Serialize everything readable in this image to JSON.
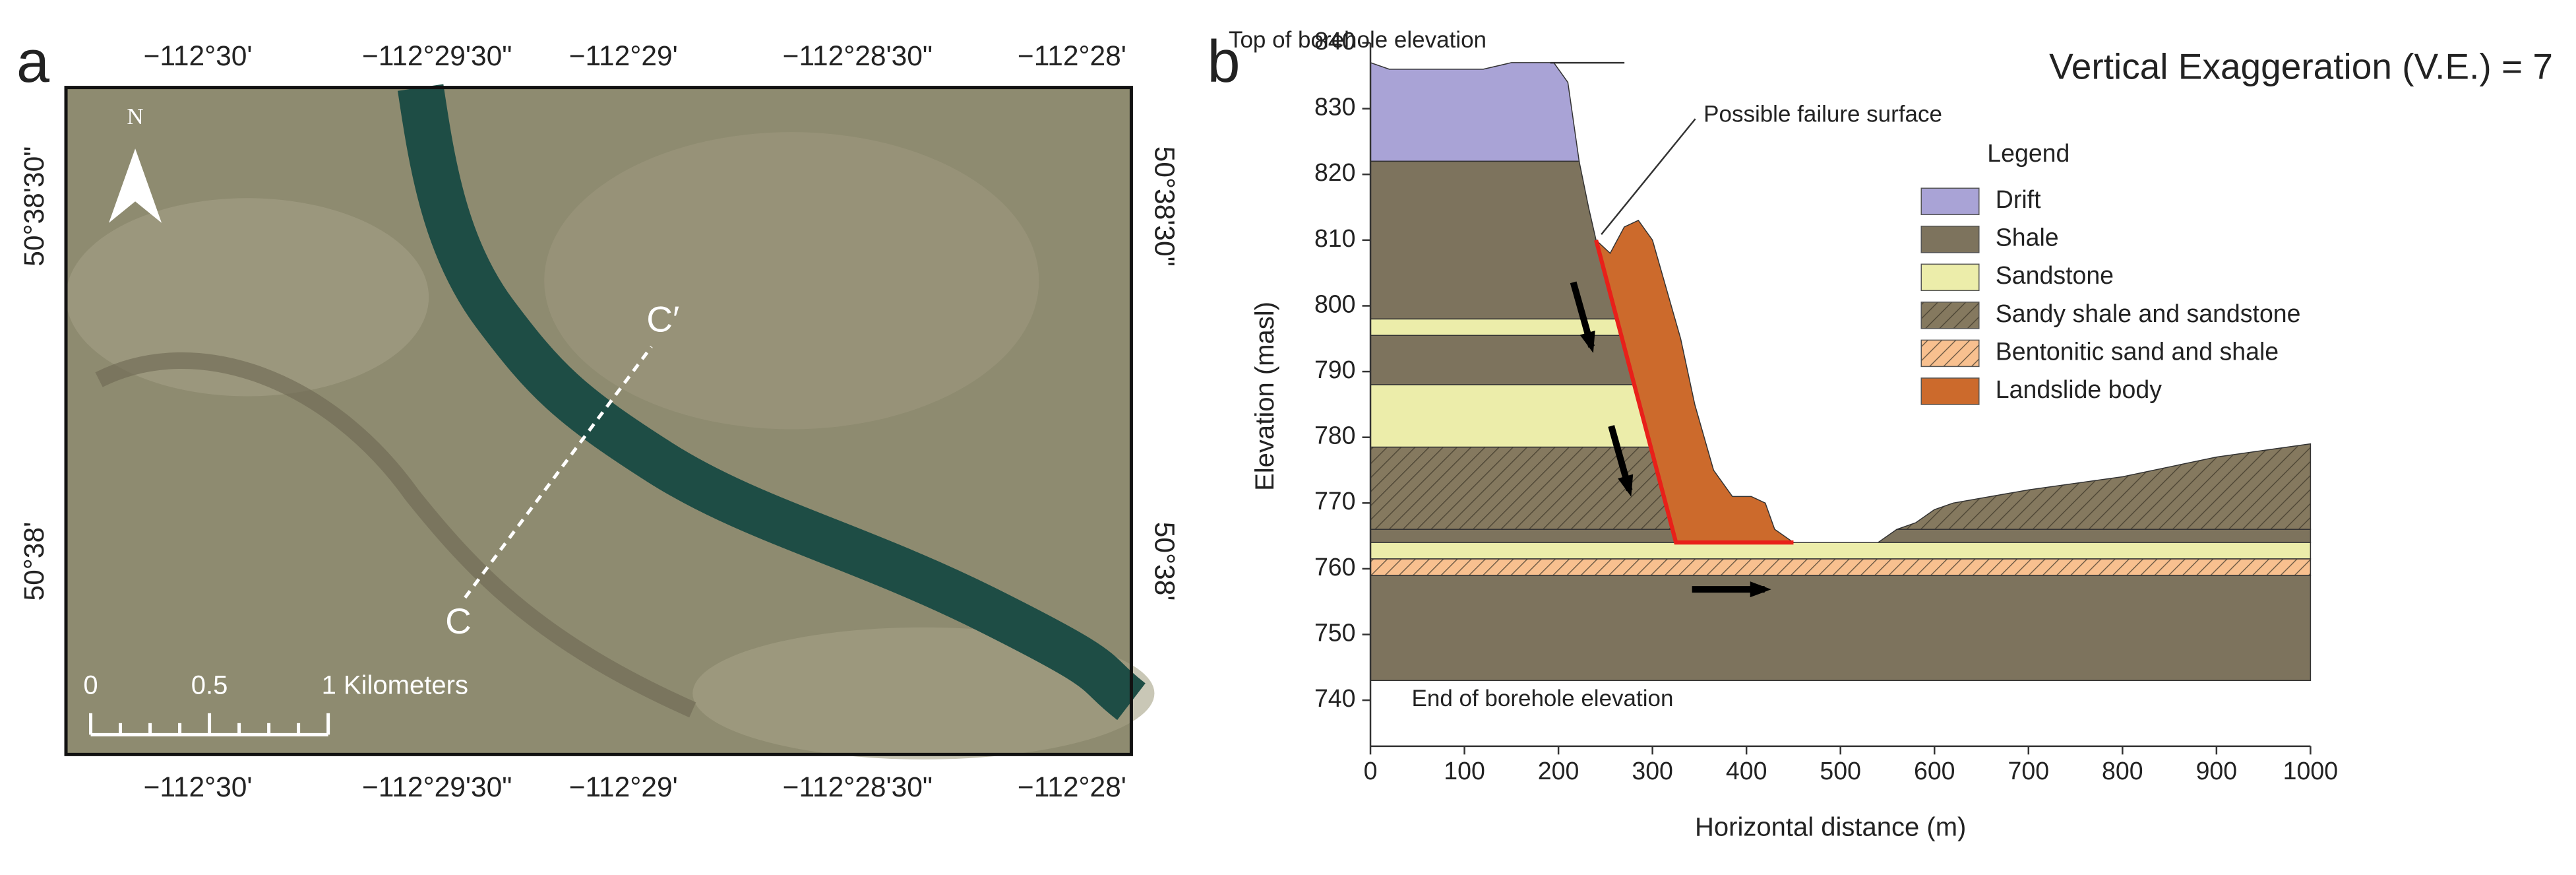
{
  "panel_a": {
    "label": "a",
    "top_ticks": [
      "−112°30'",
      "−112°29'30\"",
      "−112°29'",
      "−112°28'30\"",
      "−112°28'"
    ],
    "bottom_ticks": [
      "−112°30'",
      "−112°29'30\"",
      "−112°29'",
      "−112°28'30\"",
      "−112°28'"
    ],
    "left_ticks": [
      "50°38'30\"",
      "50°38'"
    ],
    "right_ticks": [
      "50°38'30\"",
      "50°38'"
    ],
    "north": "N",
    "scale_labels": [
      "0",
      "0.5",
      "1 Kilometers"
    ],
    "section_labels": [
      "C",
      "C′"
    ]
  },
  "chart_data": {
    "type": "cross-section",
    "panel_label": "b",
    "title": "Vertical Exaggeration (V.E.) = 7",
    "xlabel": "Horizontal distance (m)",
    "ylabel": "Elevation (masl)",
    "xlim": [
      0,
      1000
    ],
    "ylim": [
      733,
      840
    ],
    "xticks": [
      0,
      100,
      200,
      300,
      400,
      500,
      600,
      700,
      800,
      900,
      1000
    ],
    "yticks": [
      740,
      750,
      760,
      770,
      780,
      790,
      800,
      810,
      820,
      830,
      840
    ],
    "legend_title": "Legend",
    "annotations": [
      "Top of borehole elevation",
      "Possible failure surface",
      "End of borehole elevation"
    ],
    "series": [
      {
        "name": "Drift",
        "color": "#a9a3d6",
        "hatch": false,
        "polygons": [
          [
            [
              0,
              822
            ],
            [
              222,
              822
            ],
            [
              210,
              834
            ],
            [
              195,
              837
            ],
            [
              150,
              837
            ],
            [
              120,
              836
            ],
            [
              60,
              836
            ],
            [
              20,
              836
            ],
            [
              0,
              837
            ]
          ]
        ]
      },
      {
        "name": "Shale",
        "color": "#7d735d",
        "hatch": false,
        "polygons": [
          [
            [
              0,
              743
            ],
            [
              1000,
              743
            ],
            [
              1000,
              759
            ],
            [
              0,
              759
            ]
          ],
          [
            [
              0,
              764
            ],
            [
              325,
              764
            ],
            [
              321,
              766
            ],
            [
              0,
              766
            ]
          ],
          [
            [
              540,
              764
            ],
            [
              1000,
              764
            ],
            [
              1000,
              766
            ],
            [
              560,
              766
            ]
          ],
          [
            [
              0,
              788
            ],
            [
              281,
              788
            ],
            [
              267,
              795.5
            ],
            [
              0,
              795.5
            ]
          ],
          [
            [
              0,
              798
            ],
            [
              262,
              798
            ],
            [
              240,
              810
            ],
            [
              232,
              815
            ],
            [
              222,
              822
            ],
            [
              0,
              822
            ]
          ]
        ]
      },
      {
        "name": "Sandstone",
        "color": "#ecedaa",
        "hatch": false,
        "polygons": [
          [
            [
              0,
              761.5
            ],
            [
              1000,
              761.5
            ],
            [
              1000,
              764
            ],
            [
              0,
              764
            ]
          ],
          [
            [
              0,
              778.5
            ],
            [
              298,
              778.5
            ],
            [
              281,
              788
            ],
            [
              0,
              788
            ]
          ],
          [
            [
              0,
              795.5
            ],
            [
              267,
              795.5
            ],
            [
              262,
              798
            ],
            [
              0,
              798
            ]
          ]
        ]
      },
      {
        "name": "Sandy shale and sandstone",
        "color": "#85795f",
        "hatch": true,
        "polygons": [
          [
            [
              0,
              766
            ],
            [
              321,
              766
            ],
            [
              298,
              778.5
            ],
            [
              0,
              778.5
            ]
          ],
          [
            [
              560,
              766
            ],
            [
              1000,
              766
            ],
            [
              1000,
              779
            ],
            [
              900,
              777
            ],
            [
              800,
              774
            ],
            [
              700,
              772
            ],
            [
              620,
              770
            ],
            [
              600,
              769
            ],
            [
              580,
              767
            ]
          ]
        ]
      },
      {
        "name": "Bentonitic sand and shale",
        "color": "#f8c08f",
        "hatch": true,
        "polygons": [
          [
            [
              0,
              759
            ],
            [
              1000,
              759
            ],
            [
              1000,
              761.5
            ],
            [
              0,
              761.5
            ]
          ]
        ]
      },
      {
        "name": "Landslide body",
        "color": "#cc6a2c",
        "hatch": false,
        "polygons": [
          [
            [
              240,
              810
            ],
            [
              255,
              808
            ],
            [
              270,
              812
            ],
            [
              285,
              813
            ],
            [
              300,
              810
            ],
            [
              330,
              795
            ],
            [
              345,
              785
            ],
            [
              365,
              775
            ],
            [
              385,
              771
            ],
            [
              405,
              771
            ],
            [
              420,
              770
            ],
            [
              430,
              766
            ],
            [
              450,
              764
            ],
            [
              325,
              764
            ]
          ]
        ]
      }
    ]
  }
}
